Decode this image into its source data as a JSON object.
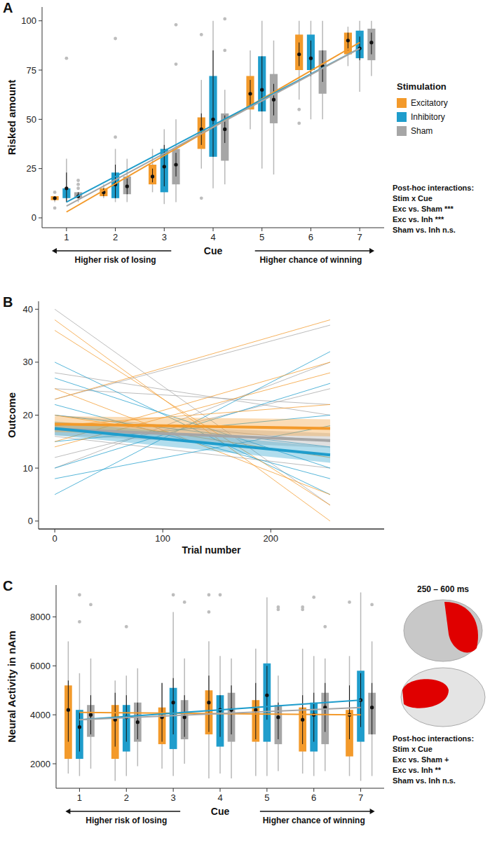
{
  "chart_data": [
    {
      "panel": "A",
      "type": "box",
      "y_label": "Risked amount",
      "x_label": "Cue",
      "x_annotations": [
        "Higher risk of losing",
        "Higher chance of winning"
      ],
      "categories": [
        1,
        2,
        3,
        4,
        5,
        6,
        7
      ],
      "ylim": [
        -5,
        107
      ],
      "yticks": [
        0,
        25,
        50,
        75,
        100
      ],
      "grid": false,
      "legend": "right",
      "legend_title": "Stimulation",
      "annotations": [
        "Post-hoc interactions:",
        "Stim x Cue",
        "Exc vs. Sham ***",
        "Exc vs.  Inh ***",
        "Sham vs. Inh n.s."
      ],
      "series": [
        {
          "name": "Excitatory",
          "color": "#f39a2b",
          "q1": [
            9,
            11,
            17,
            35,
            55,
            75,
            83
          ],
          "q3": [
            11,
            15,
            27,
            51,
            72,
            93,
            94
          ],
          "whisker_low": [
            8,
            10,
            13,
            25,
            45,
            60,
            77
          ],
          "whisker_high": [
            11,
            17,
            35,
            70,
            85,
            100,
            97
          ],
          "mean": [
            10,
            13,
            21,
            45,
            63,
            83,
            90
          ],
          "err_low": [
            9,
            11,
            18,
            37,
            56,
            77,
            85
          ],
          "err_high": [
            11,
            15,
            25,
            53,
            70,
            89,
            94
          ],
          "outliers": [
            [
              5,
              13
            ],
            [],
            [],
            [
              10,
              93
            ],
            [],
            [
              48,
              55
            ],
            []
          ],
          "fit": [
            3,
            89
          ]
        },
        {
          "name": "Inhibitory",
          "color": "#1f9dcc",
          "q1": [
            10,
            10,
            13,
            31,
            54,
            75,
            81
          ],
          "q3": [
            15,
            23,
            35,
            72,
            82,
            93,
            95
          ],
          "whisker_low": [
            8,
            8,
            7,
            15,
            25,
            50,
            64
          ],
          "whisker_high": [
            30,
            35,
            45,
            100,
            100,
            100,
            100
          ],
          "mean": [
            15,
            17,
            26,
            50,
            65,
            81,
            86
          ],
          "err_low": [
            8,
            10,
            16,
            31,
            54,
            72,
            80
          ],
          "err_high": [
            23,
            27,
            37,
            85,
            82,
            90,
            92
          ],
          "outliers": [
            [
              81
            ],
            [
              41,
              91
            ],
            [],
            [],
            [],
            [],
            []
          ],
          "fit": [
            8,
            86
          ]
        },
        {
          "name": "Sham",
          "color": "#a6a6a6",
          "q1": [
            10,
            12,
            17,
            29,
            48,
            63,
            80
          ],
          "q3": [
            13,
            21,
            35,
            53,
            73,
            85,
            96
          ],
          "whisker_low": [
            8,
            8,
            8,
            17,
            22,
            50,
            72
          ],
          "whisker_high": [
            13,
            30,
            50,
            65,
            90,
            100,
            100
          ],
          "mean": [
            11,
            16,
            27,
            45,
            60,
            77,
            89
          ],
          "err_low": [
            10,
            12,
            21,
            38,
            52,
            69,
            83
          ],
          "err_high": [
            13,
            20,
            33,
            52,
            68,
            85,
            94
          ],
          "outliers": [
            [
              15,
              17,
              19
            ],
            [],
            [
              78,
              98
            ],
            [
              85,
              101
            ],
            [],
            [],
            []
          ],
          "fit": [
            6,
            86
          ]
        }
      ]
    },
    {
      "panel": "B",
      "type": "line",
      "y_label": "Outcome",
      "x_label": "Trial number",
      "x": [
        0,
        255
      ],
      "xlim": [
        -15,
        305
      ],
      "xticks": [
        0,
        100,
        200
      ],
      "ylim": [
        -1.5,
        41.5
      ],
      "yticks": [
        0,
        10,
        20,
        30,
        40
      ],
      "grid": false,
      "series": [
        {
          "name": "Sham",
          "color": "#a6a6a6",
          "values": [
            17.4,
            15.2
          ],
          "ci_low": [
            16.2,
            13.8
          ],
          "ci_high": [
            18.6,
            16.6
          ],
          "subjects": [
            [
              40,
              3
            ],
            [
              23,
              37
            ],
            [
              12,
              25
            ],
            [
              28,
              20
            ],
            [
              20,
              15
            ],
            [
              16,
              10
            ],
            [
              10,
              30
            ],
            [
              25,
              22
            ]
          ]
        },
        {
          "name": "Inhibitory",
          "color": "#1f9dcc",
          "values": [
            17.5,
            12.5
          ],
          "ci_low": [
            16.2,
            11.0
          ],
          "ci_high": [
            18.8,
            14.0
          ],
          "subjects": [
            [
              30,
              5
            ],
            [
              10,
              26
            ],
            [
              5,
              32
            ],
            [
              22,
              8
            ],
            [
              27,
              10
            ],
            [
              15,
              20
            ],
            [
              20,
              14
            ],
            [
              8,
              18
            ]
          ]
        },
        {
          "name": "Excitatory",
          "color": "#f39a2b",
          "values": [
            18.3,
            17.5
          ],
          "ci_low": [
            16.8,
            16.0
          ],
          "ci_high": [
            19.8,
            19.2
          ],
          "subjects": [
            [
              36,
              3
            ],
            [
              38,
              0
            ],
            [
              23,
              38
            ],
            [
              15,
              30
            ],
            [
              14,
              28
            ],
            [
              20,
              12
            ],
            [
              25,
              5
            ],
            [
              18,
              22
            ]
          ]
        }
      ]
    },
    {
      "panel": "C",
      "type": "box",
      "y_label": "Neural Activity in nAm",
      "x_label": "Cue",
      "x_annotations": [
        "Higher risk of losing",
        "Higher chance of winning"
      ],
      "categories": [
        1,
        2,
        3,
        4,
        5,
        6,
        7
      ],
      "ylim": [
        1000,
        9300
      ],
      "yticks": [
        2000,
        4000,
        6000,
        8000
      ],
      "grid": false,
      "inset_title": "250 – 600 ms",
      "annotations": [
        "Post-hoc interactions:",
        "Stim x Cue",
        "Exc vs. Sham +",
        "Exc vs. Inh **",
        "Sham vs. Inh n.s."
      ],
      "series": [
        {
          "name": "Excitatory",
          "color": "#f39a2b",
          "q1": [
            2200,
            2200,
            2800,
            3200,
            2900,
            2500,
            2300
          ],
          "q3": [
            5200,
            4400,
            4300,
            5000,
            4600,
            4300,
            4200
          ],
          "whisker_low": [
            1600,
            1300,
            1800,
            1400,
            1500,
            1600,
            1500
          ],
          "whisker_high": [
            7000,
            5400,
            5300,
            7000,
            6700,
            6700,
            6400
          ],
          "mean": [
            4200,
            3800,
            3900,
            4500,
            4200,
            3800,
            4000
          ],
          "err_low": [
            2900,
            2700,
            2900,
            3300,
            3000,
            2800,
            3000
          ],
          "err_high": [
            5400,
            4900,
            5300,
            5600,
            5300,
            4800,
            5200
          ],
          "outliers": [
            [],
            [],
            [],
            [
              8900,
              8200
            ],
            [],
            [
              8400,
              8300
            ],
            [
              8600
            ]
          ],
          "fit": [
            4100,
            4000
          ]
        },
        {
          "name": "Inhibitory",
          "color": "#1f9dcc",
          "q1": [
            2200,
            2500,
            2600,
            2700,
            2900,
            2500,
            2900
          ],
          "q3": [
            4200,
            4400,
            5100,
            4800,
            6100,
            4500,
            5800
          ],
          "whisker_low": [
            1500,
            1500,
            1500,
            1600,
            1500,
            1500,
            1300
          ],
          "whisker_high": [
            5700,
            5600,
            8200,
            6400,
            8800,
            6400,
            9000
          ],
          "mean": [
            3500,
            3900,
            4500,
            4200,
            4800,
            4000,
            4600
          ],
          "err_low": [
            2500,
            2900,
            3200,
            3100,
            3800,
            2900,
            3500
          ],
          "err_high": [
            4100,
            4800,
            5500,
            4800,
            6000,
            4900,
            5700
          ],
          "outliers": [
            [
              8900,
              7800
            ],
            [
              7600
            ],
            [
              8900
            ],
            [
              8900
            ],
            [],
            [
              8800
            ],
            []
          ],
          "fit": [
            3800,
            4600
          ]
        },
        {
          "name": "Sham",
          "color": "#a6a6a6",
          "q1": [
            3100,
            2900,
            3000,
            2900,
            2800,
            2800,
            3200
          ],
          "q3": [
            4400,
            4500,
            4600,
            4900,
            4400,
            4900,
            4900
          ],
          "whisker_low": [
            1800,
            1900,
            2000,
            1400,
            1700,
            1700,
            1500
          ],
          "whisker_high": [
            6300,
            5900,
            6300,
            6300,
            5600,
            6300,
            7000
          ],
          "mean": [
            4000,
            3700,
            3900,
            4200,
            3900,
            4300,
            4300
          ],
          "err_low": [
            3200,
            3000,
            3100,
            3200,
            3000,
            3300,
            3200
          ],
          "err_high": [
            4800,
            4500,
            4800,
            5200,
            4500,
            5300,
            5300
          ],
          "outliers": [
            [
              8500
            ],
            [],
            [
              8600
            ],
            [],
            [
              8400,
              8300
            ],
            [
              7600
            ],
            [
              8500
            ]
          ],
          "fit": [
            3800,
            4300
          ]
        }
      ]
    }
  ]
}
